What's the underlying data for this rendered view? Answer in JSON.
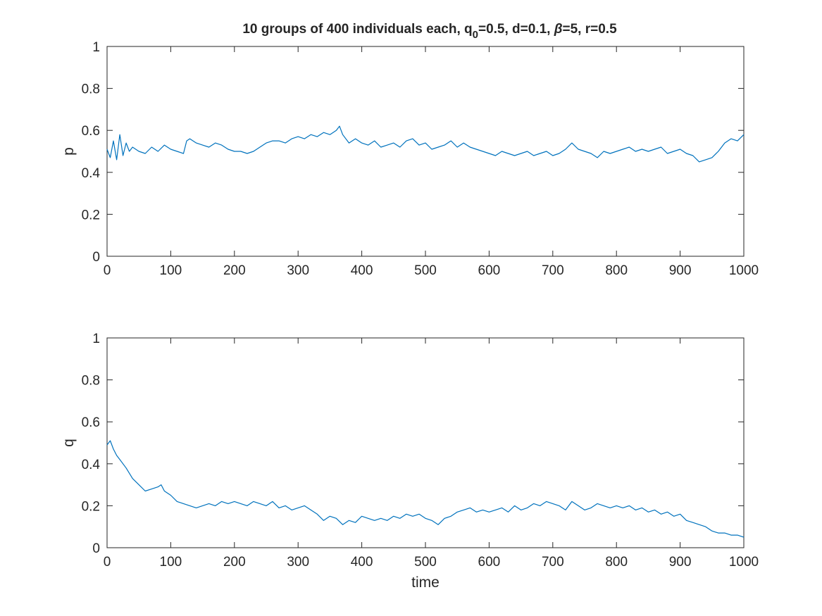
{
  "figure": {
    "title_main": "10 groups of 400 individuals each, q",
    "title_sub": "0",
    "title_rest": "=0.5, d=0.1, ",
    "title_beta": "β",
    "title_end": "=5, r=0.5"
  },
  "colors": {
    "line": "#0072BD",
    "axis": "#262626",
    "background": "#ffffff"
  },
  "chart_data": [
    {
      "type": "line",
      "title": "10 groups of 400 individuals each, q0=0.5, d=0.1, β=5, r=0.5",
      "xlabel": "",
      "ylabel": "p",
      "xlim": [
        0,
        1000
      ],
      "ylim": [
        0,
        1
      ],
      "xticks": [
        0,
        100,
        200,
        300,
        400,
        500,
        600,
        700,
        800,
        900,
        1000
      ],
      "yticks": [
        0,
        0.2,
        0.4,
        0.6,
        0.8,
        1
      ],
      "xtick_labels": [
        "0",
        "100",
        "200",
        "300",
        "400",
        "500",
        "600",
        "700",
        "800",
        "900",
        "1000"
      ],
      "ytick_labels": [
        "0",
        "0.2",
        "0.4",
        "0.6",
        "0.8",
        "1"
      ],
      "grid": false,
      "series": [
        {
          "x": [
            0,
            5,
            10,
            15,
            20,
            25,
            30,
            35,
            40,
            50,
            60,
            70,
            80,
            90,
            100,
            110,
            120,
            125,
            130,
            140,
            150,
            160,
            170,
            180,
            190,
            200,
            210,
            220,
            230,
            240,
            250,
            260,
            270,
            280,
            290,
            300,
            310,
            320,
            330,
            340,
            350,
            360,
            365,
            370,
            380,
            390,
            400,
            410,
            420,
            430,
            440,
            450,
            460,
            470,
            480,
            490,
            500,
            510,
            520,
            530,
            540,
            550,
            560,
            570,
            580,
            590,
            600,
            610,
            620,
            630,
            640,
            650,
            660,
            670,
            680,
            690,
            700,
            710,
            720,
            730,
            740,
            750,
            760,
            770,
            780,
            790,
            800,
            810,
            820,
            830,
            840,
            850,
            860,
            870,
            880,
            890,
            900,
            910,
            920,
            930,
            940,
            950,
            960,
            970,
            980,
            990,
            1000
          ],
          "y": [
            0.51,
            0.47,
            0.55,
            0.46,
            0.58,
            0.48,
            0.54,
            0.5,
            0.52,
            0.5,
            0.49,
            0.52,
            0.5,
            0.53,
            0.51,
            0.5,
            0.49,
            0.55,
            0.56,
            0.54,
            0.53,
            0.52,
            0.54,
            0.53,
            0.51,
            0.5,
            0.5,
            0.49,
            0.5,
            0.52,
            0.54,
            0.55,
            0.55,
            0.54,
            0.56,
            0.57,
            0.56,
            0.58,
            0.57,
            0.59,
            0.58,
            0.6,
            0.62,
            0.58,
            0.54,
            0.56,
            0.54,
            0.53,
            0.55,
            0.52,
            0.53,
            0.54,
            0.52,
            0.55,
            0.56,
            0.53,
            0.54,
            0.51,
            0.52,
            0.53,
            0.55,
            0.52,
            0.54,
            0.52,
            0.51,
            0.5,
            0.49,
            0.48,
            0.5,
            0.49,
            0.48,
            0.49,
            0.5,
            0.48,
            0.49,
            0.5,
            0.48,
            0.49,
            0.51,
            0.54,
            0.51,
            0.5,
            0.49,
            0.47,
            0.5,
            0.49,
            0.5,
            0.51,
            0.52,
            0.5,
            0.51,
            0.5,
            0.51,
            0.52,
            0.49,
            0.5,
            0.51,
            0.49,
            0.48,
            0.45,
            0.46,
            0.47,
            0.5,
            0.54,
            0.56,
            0.55,
            0.58
          ]
        }
      ]
    },
    {
      "type": "line",
      "xlabel": "time",
      "ylabel": "q",
      "xlim": [
        0,
        1000
      ],
      "ylim": [
        0,
        1
      ],
      "xticks": [
        0,
        100,
        200,
        300,
        400,
        500,
        600,
        700,
        800,
        900,
        1000
      ],
      "yticks": [
        0,
        0.2,
        0.4,
        0.6,
        0.8,
        1
      ],
      "xtick_labels": [
        "0",
        "100",
        "200",
        "300",
        "400",
        "500",
        "600",
        "700",
        "800",
        "900",
        "1000"
      ],
      "ytick_labels": [
        "0",
        "0.2",
        "0.4",
        "0.6",
        "0.8",
        "1"
      ],
      "grid": false,
      "series": [
        {
          "x": [
            0,
            5,
            10,
            15,
            20,
            30,
            40,
            50,
            60,
            70,
            80,
            85,
            90,
            100,
            110,
            120,
            130,
            140,
            150,
            160,
            170,
            180,
            190,
            200,
            210,
            220,
            230,
            240,
            250,
            260,
            270,
            280,
            290,
            300,
            310,
            320,
            330,
            340,
            350,
            360,
            370,
            380,
            390,
            400,
            410,
            420,
            430,
            440,
            450,
            460,
            470,
            480,
            490,
            500,
            510,
            520,
            530,
            540,
            550,
            560,
            570,
            580,
            590,
            600,
            610,
            620,
            630,
            640,
            650,
            660,
            670,
            680,
            690,
            700,
            710,
            720,
            730,
            740,
            750,
            760,
            770,
            780,
            790,
            800,
            810,
            820,
            830,
            840,
            850,
            860,
            870,
            880,
            890,
            900,
            910,
            920,
            930,
            940,
            950,
            960,
            970,
            980,
            990,
            1000
          ],
          "y": [
            0.49,
            0.51,
            0.47,
            0.44,
            0.42,
            0.38,
            0.33,
            0.3,
            0.27,
            0.28,
            0.29,
            0.3,
            0.27,
            0.25,
            0.22,
            0.21,
            0.2,
            0.19,
            0.2,
            0.21,
            0.2,
            0.22,
            0.21,
            0.22,
            0.21,
            0.2,
            0.22,
            0.21,
            0.2,
            0.22,
            0.19,
            0.2,
            0.18,
            0.19,
            0.2,
            0.18,
            0.16,
            0.13,
            0.15,
            0.14,
            0.11,
            0.13,
            0.12,
            0.15,
            0.14,
            0.13,
            0.14,
            0.13,
            0.15,
            0.14,
            0.16,
            0.15,
            0.16,
            0.14,
            0.13,
            0.11,
            0.14,
            0.15,
            0.17,
            0.18,
            0.19,
            0.17,
            0.18,
            0.17,
            0.18,
            0.19,
            0.17,
            0.2,
            0.18,
            0.19,
            0.21,
            0.2,
            0.22,
            0.21,
            0.2,
            0.18,
            0.22,
            0.2,
            0.18,
            0.19,
            0.21,
            0.2,
            0.19,
            0.2,
            0.19,
            0.2,
            0.18,
            0.19,
            0.17,
            0.18,
            0.16,
            0.17,
            0.15,
            0.16,
            0.13,
            0.12,
            0.11,
            0.1,
            0.08,
            0.07,
            0.07,
            0.06,
            0.06,
            0.05
          ]
        }
      ]
    }
  ]
}
